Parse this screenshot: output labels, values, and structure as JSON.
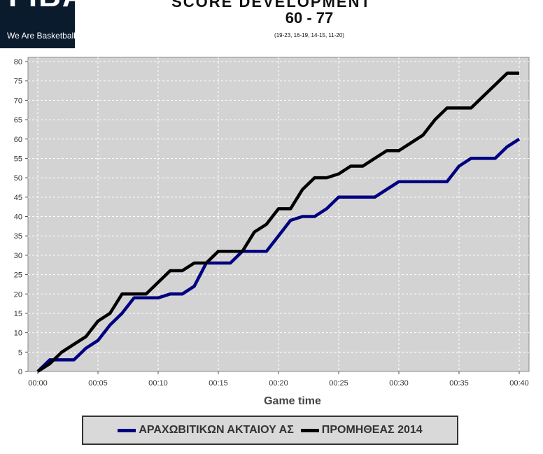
{
  "header": {
    "logo_brand": "FIBA",
    "logo_tagline": "We Are Basketball",
    "title": "SCORE DEVELOPMENT",
    "score": "60 - 77",
    "quarters": "(19-23, 16-19, 14-15, 11-20)"
  },
  "chart_data": {
    "type": "line",
    "title": "SCORE DEVELOPMENT",
    "xlabel": "Game time",
    "ylabel": "",
    "x_ticks": [
      "00:00",
      "00:05",
      "00:10",
      "00:15",
      "00:20",
      "00:25",
      "00:30",
      "00:35",
      "00:40"
    ],
    "y_ticks": [
      0,
      5,
      10,
      15,
      20,
      25,
      30,
      35,
      40,
      45,
      50,
      55,
      60,
      65,
      70,
      75,
      80
    ],
    "xlim": [
      0,
      40
    ],
    "ylim": [
      0,
      80
    ],
    "grid": true,
    "legend_position": "bottom",
    "series": [
      {
        "name": "ΑΡΑΧΩΒΙΤΙΚΩΝ ΑΚΤΑΙΟΥ ΑΣ",
        "color": "#000080",
        "x": [
          0,
          1,
          2,
          3,
          4,
          5,
          6,
          7,
          8,
          9,
          10,
          11,
          12,
          13,
          14,
          15,
          16,
          17,
          18,
          19,
          20,
          21,
          22,
          23,
          24,
          25,
          26,
          27,
          28,
          29,
          30,
          31,
          32,
          33,
          34,
          35,
          36,
          37,
          38,
          39,
          40
        ],
        "y": [
          0,
          3,
          3,
          3,
          6,
          8,
          12,
          15,
          19,
          19,
          19,
          20,
          20,
          22,
          28,
          28,
          28,
          31,
          31,
          31,
          35,
          39,
          40,
          40,
          42,
          45,
          45,
          45,
          45,
          47,
          49,
          49,
          49,
          49,
          49,
          53,
          55,
          55,
          55,
          58,
          60
        ]
      },
      {
        "name": "ΠΡΟΜΗΘΕΑΣ 2014",
        "color": "#000000",
        "x": [
          0,
          1,
          2,
          3,
          4,
          5,
          6,
          7,
          8,
          9,
          10,
          11,
          12,
          13,
          14,
          15,
          16,
          17,
          18,
          19,
          20,
          21,
          22,
          23,
          24,
          25,
          26,
          27,
          28,
          29,
          30,
          31,
          32,
          33,
          34,
          35,
          36,
          37,
          38,
          39,
          40
        ],
        "y": [
          0,
          2,
          5,
          7,
          9,
          13,
          15,
          20,
          20,
          20,
          23,
          26,
          26,
          28,
          28,
          31,
          31,
          31,
          36,
          38,
          42,
          42,
          47,
          50,
          50,
          51,
          53,
          53,
          55,
          57,
          57,
          59,
          61,
          65,
          68,
          68,
          68,
          71,
          74,
          77,
          77
        ]
      }
    ]
  }
}
